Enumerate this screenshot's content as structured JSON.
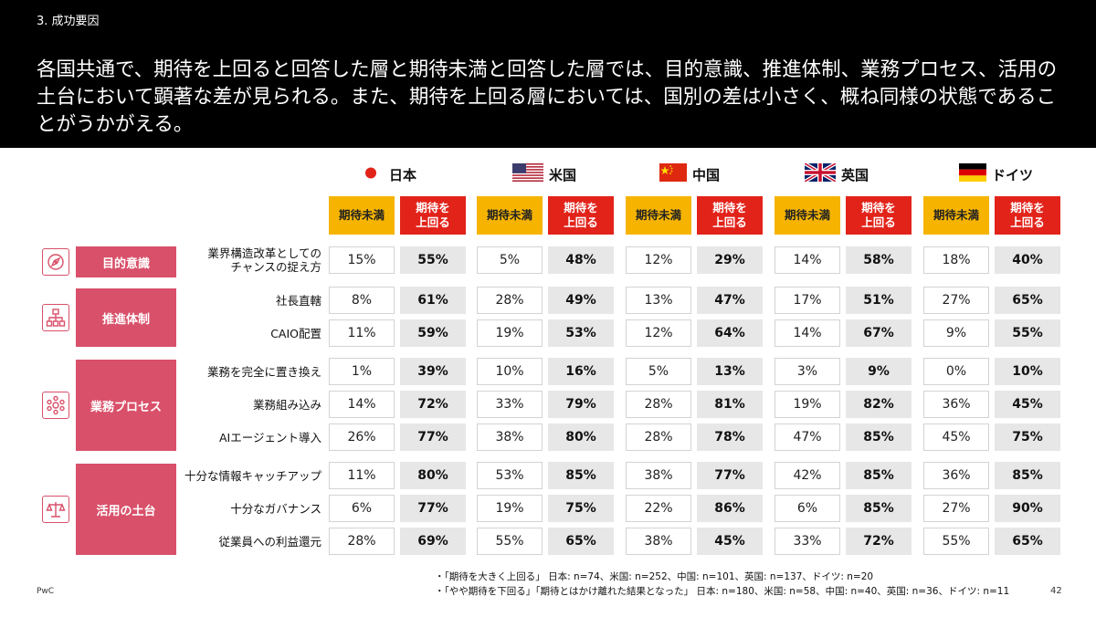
{
  "header": {
    "section_label": "3. 成功要因",
    "headline": "各国共通で、期待を上回ると回答した層と期待未満と回答した層では、目的意識、推進体制、業務プロセス、活用の土台において顕著な差が見られる。また、期待を上回る層においては、国別の差は小さく、概ね同様の状態であることがうかがえる。"
  },
  "countries": [
    {
      "name": "日本",
      "flag": "japan"
    },
    {
      "name": "米国",
      "flag": "usa"
    },
    {
      "name": "中国",
      "flag": "china"
    },
    {
      "name": "英国",
      "flag": "uk"
    },
    {
      "name": "ドイツ",
      "flag": "germany"
    }
  ],
  "column_headers": {
    "below": "期待未満",
    "above": "期待を\n上回る"
  },
  "categories": [
    {
      "label": "目的意識",
      "icon": "compass-icon"
    },
    {
      "label": "推進体制",
      "icon": "org-chart-icon"
    },
    {
      "label": "業務プロセス",
      "icon": "gear-network-icon"
    },
    {
      "label": "活用の土台",
      "icon": "scale-icon"
    }
  ],
  "rows": [
    {
      "label": "業界構造改革としての\nチャンスの捉え方",
      "values": [
        "15%",
        "55%",
        "5%",
        "48%",
        "12%",
        "29%",
        "14%",
        "58%",
        "18%",
        "40%"
      ]
    },
    {
      "label": "社長直轄",
      "values": [
        "8%",
        "61%",
        "28%",
        "49%",
        "13%",
        "47%",
        "17%",
        "51%",
        "27%",
        "65%"
      ]
    },
    {
      "label": "CAIO配置",
      "values": [
        "11%",
        "59%",
        "19%",
        "53%",
        "12%",
        "64%",
        "14%",
        "67%",
        "9%",
        "55%"
      ]
    },
    {
      "label": "業務を完全に置き換え",
      "values": [
        "1%",
        "39%",
        "10%",
        "16%",
        "5%",
        "13%",
        "3%",
        "9%",
        "0%",
        "10%"
      ]
    },
    {
      "label": "業務組み込み",
      "values": [
        "14%",
        "72%",
        "33%",
        "79%",
        "28%",
        "81%",
        "19%",
        "82%",
        "36%",
        "45%"
      ]
    },
    {
      "label": "AIエージェント導入",
      "values": [
        "26%",
        "77%",
        "38%",
        "80%",
        "28%",
        "78%",
        "47%",
        "85%",
        "45%",
        "75%"
      ]
    },
    {
      "label": "十分な情報キャッチアップ",
      "values": [
        "11%",
        "80%",
        "53%",
        "85%",
        "38%",
        "77%",
        "42%",
        "85%",
        "36%",
        "85%"
      ]
    },
    {
      "label": "十分なガバナンス",
      "values": [
        "6%",
        "77%",
        "19%",
        "75%",
        "22%",
        "86%",
        "6%",
        "85%",
        "27%",
        "90%"
      ]
    },
    {
      "label": "従業員への利益還元",
      "values": [
        "28%",
        "69%",
        "55%",
        "65%",
        "38%",
        "45%",
        "33%",
        "72%",
        "55%",
        "65%"
      ]
    }
  ],
  "notes": [
    "・「期待を大きく上回る」 日本: n=74、米国: n=252、中国: n=101、英国: n=137、ドイツ: n=20",
    "・「やや期待を下回る」「期待とはかけ離れた結果となった」 日本: n=180、米国: n=58、中国: n=40、英国: n=36、ドイツ: n=11"
  ],
  "footer": {
    "brand": "PwC",
    "page": "42"
  },
  "colors": {
    "below_header": "#f6b400",
    "above_header": "#e2231a",
    "category": "#d9506a",
    "high_cell": "#e7e7e7"
  }
}
